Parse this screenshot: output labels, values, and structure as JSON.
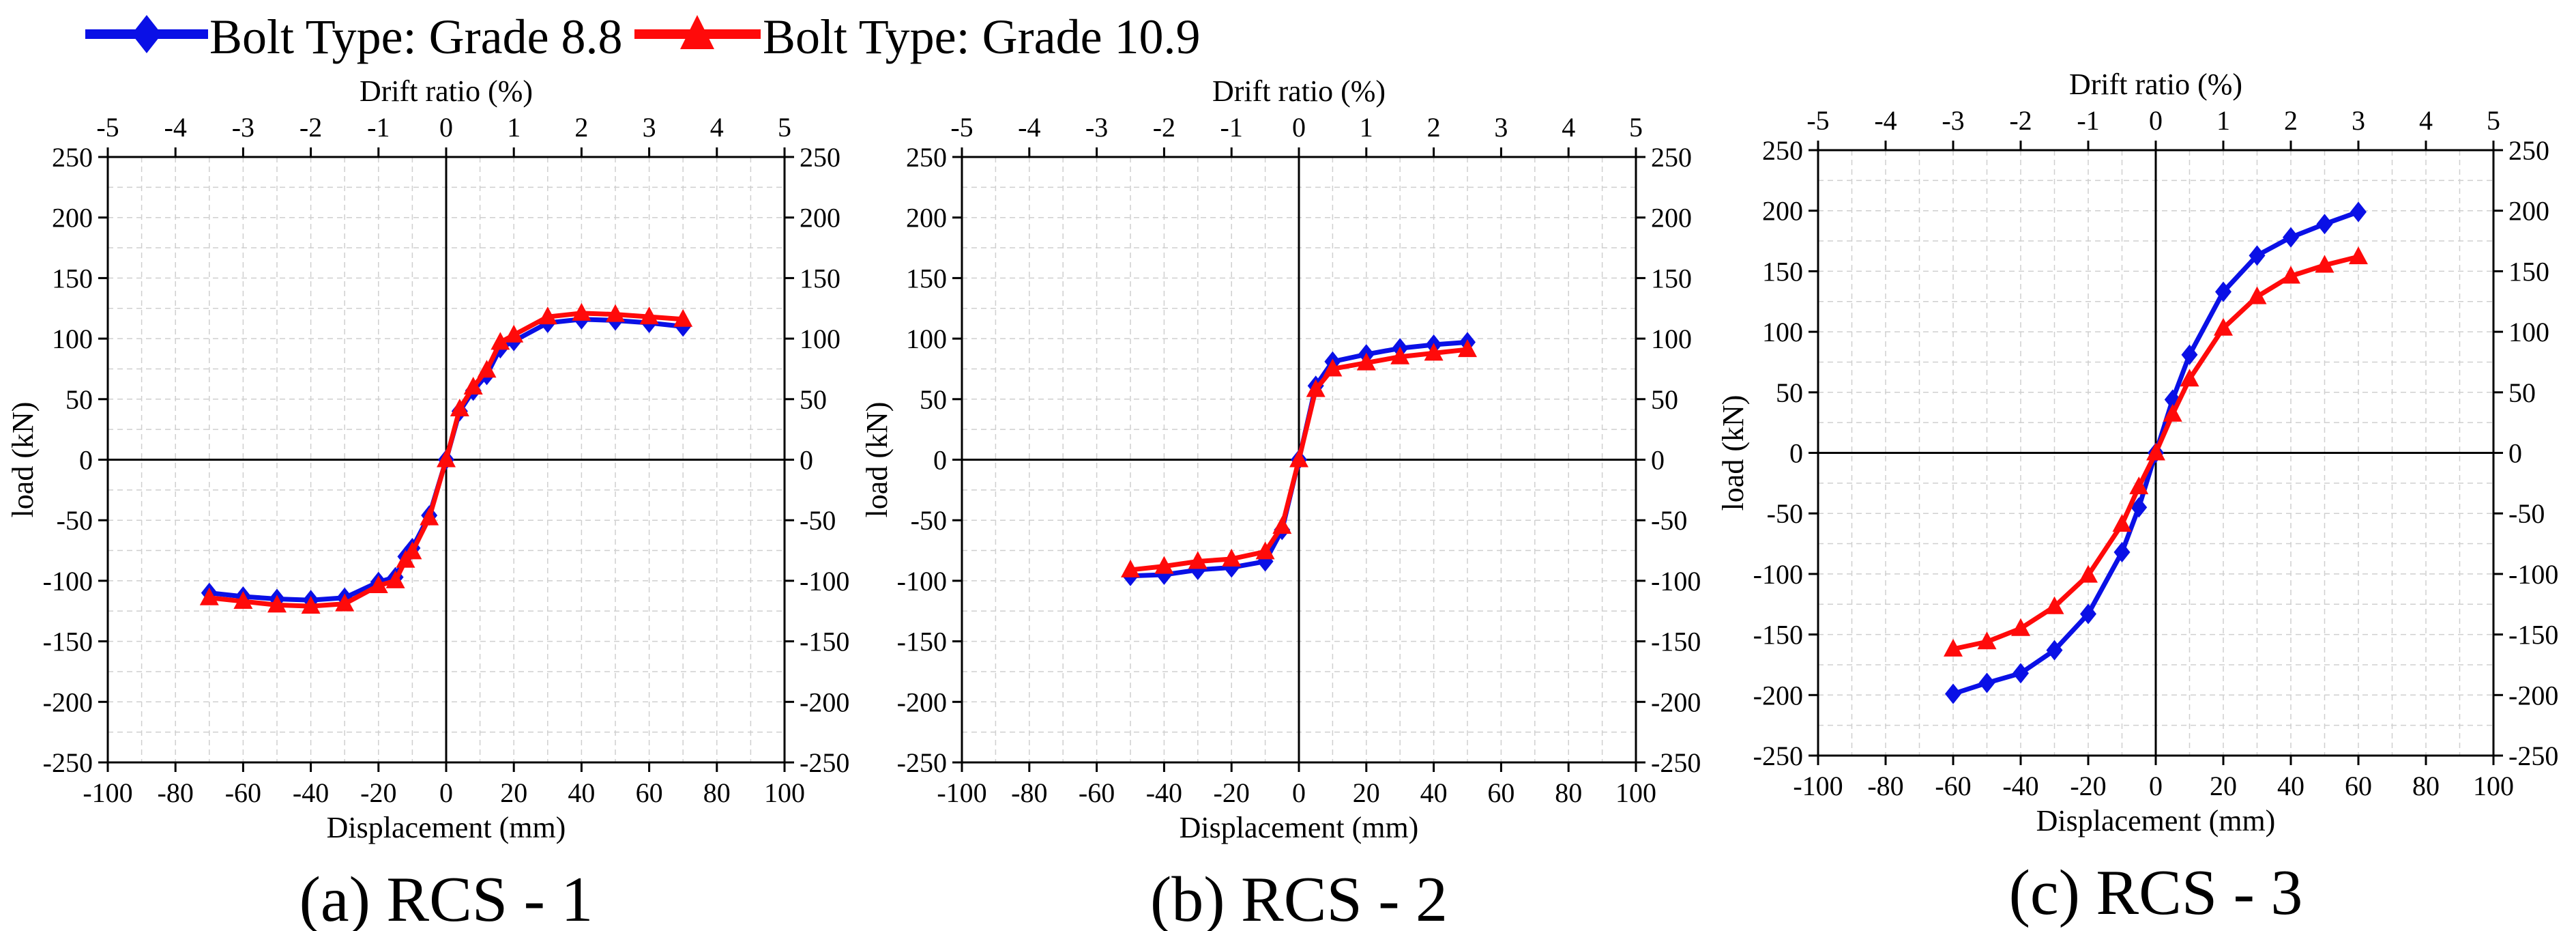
{
  "legend": {
    "items": [
      {
        "label": "Bolt Type: Grade 8.8",
        "color": "#0a10e6",
        "marker": "diamond"
      },
      {
        "label": "Bolt Type: Grade 10.9",
        "color": "#ff0a0a",
        "marker": "triangle"
      }
    ]
  },
  "chart_data": [
    {
      "type": "line",
      "title": "(a) RCS - 1",
      "xlabel": "Displacement (mm)",
      "x2label": "Drift ratio (%)",
      "ylabel": "load (kN)",
      "xlim": [
        -100,
        100
      ],
      "x2lim": [
        -5,
        5
      ],
      "ylim": [
        -250,
        250
      ],
      "xticks": [
        -100,
        -80,
        -60,
        -40,
        -20,
        0,
        20,
        40,
        60,
        80,
        100
      ],
      "x2ticks": [
        -5,
        -4,
        -3,
        -2,
        -1,
        0,
        1,
        2,
        3,
        4,
        5
      ],
      "yticks": [
        -250,
        -200,
        -150,
        -100,
        -50,
        0,
        50,
        100,
        150,
        200,
        250
      ],
      "grid": true,
      "series": [
        {
          "name": "Bolt Type: Grade 8.8",
          "color": "#0a10e6",
          "marker": "diamond",
          "x": [
            -70,
            -60,
            -50,
            -40,
            -30,
            -20,
            -15,
            -12,
            -10,
            -5,
            0,
            4,
            8,
            12,
            16,
            20,
            30,
            40,
            50,
            60,
            70
          ],
          "y": [
            -110,
            -113,
            -115,
            -116,
            -114,
            -101,
            -97,
            -80,
            -73,
            -46,
            0,
            40,
            57,
            70,
            92,
            98,
            113,
            116,
            115,
            113,
            110
          ]
        },
        {
          "name": "Bolt Type: Grade 10.9",
          "color": "#ff0a0a",
          "marker": "triangle",
          "x": [
            -70,
            -60,
            -50,
            -40,
            -30,
            -20,
            -15,
            -12,
            -10,
            -5,
            0,
            4,
            8,
            12,
            16,
            20,
            30,
            40,
            50,
            60,
            70
          ],
          "y": [
            -114,
            -117,
            -120,
            -121,
            -119,
            -104,
            -100,
            -83,
            -76,
            -48,
            0,
            42,
            60,
            74,
            97,
            103,
            118,
            121,
            120,
            118,
            116
          ]
        }
      ]
    },
    {
      "type": "line",
      "title": "(b) RCS - 2",
      "xlabel": "Displacement (mm)",
      "x2label": "Drift ratio (%)",
      "ylabel": "load (kN)",
      "xlim": [
        -100,
        100
      ],
      "x2lim": [
        -5,
        5
      ],
      "ylim": [
        -250,
        250
      ],
      "xticks": [
        -100,
        -80,
        -60,
        -40,
        -20,
        0,
        20,
        40,
        60,
        80,
        100
      ],
      "x2ticks": [
        -5,
        -4,
        -3,
        -2,
        -1,
        0,
        1,
        2,
        3,
        4,
        5
      ],
      "yticks": [
        -250,
        -200,
        -150,
        -100,
        -50,
        0,
        50,
        100,
        150,
        200,
        250
      ],
      "grid": true,
      "series": [
        {
          "name": "Bolt Type: Grade 8.8",
          "color": "#0a10e6",
          "marker": "diamond",
          "x": [
            -50,
            -40,
            -30,
            -20,
            -10,
            -5,
            0,
            5,
            10,
            20,
            30,
            40,
            50
          ],
          "y": [
            -96,
            -95,
            -91,
            -89,
            -84,
            -58,
            0,
            61,
            81,
            87,
            92,
            95,
            97
          ]
        },
        {
          "name": "Bolt Type: Grade 10.9",
          "color": "#ff0a0a",
          "marker": "triangle",
          "x": [
            -50,
            -40,
            -30,
            -20,
            -10,
            -5,
            0,
            5,
            10,
            20,
            30,
            40,
            50
          ],
          "y": [
            -91,
            -88,
            -84,
            -82,
            -76,
            -55,
            0,
            58,
            75,
            80,
            85,
            88,
            91
          ]
        }
      ]
    },
    {
      "type": "line",
      "title": "(c) RCS - 3",
      "xlabel": "Displacement (mm)",
      "x2label": "Drift ratio (%)",
      "ylabel": "load (kN)",
      "xlim": [
        -100,
        100
      ],
      "x2lim": [
        -5,
        5
      ],
      "ylim": [
        -250,
        250
      ],
      "xticks": [
        -100,
        -80,
        -60,
        -40,
        -20,
        0,
        20,
        40,
        60,
        80,
        100
      ],
      "x2ticks": [
        -5,
        -4,
        -3,
        -2,
        -1,
        0,
        1,
        2,
        3,
        4,
        5
      ],
      "yticks": [
        -250,
        -200,
        -150,
        -100,
        -50,
        0,
        50,
        100,
        150,
        200,
        250
      ],
      "grid": true,
      "series": [
        {
          "name": "Bolt Type: Grade 8.8",
          "color": "#0a10e6",
          "marker": "diamond",
          "x": [
            -60,
            -50,
            -40,
            -30,
            -20,
            -10,
            -5,
            0,
            5,
            10,
            20,
            30,
            40,
            50,
            60
          ],
          "y": [
            -199,
            -190,
            -182,
            -163,
            -133,
            -82,
            -45,
            0,
            44,
            81,
            133,
            163,
            178,
            189,
            199
          ]
        },
        {
          "name": "Bolt Type: Grade 10.9",
          "color": "#ff0a0a",
          "marker": "triangle",
          "x": [
            -60,
            -50,
            -40,
            -30,
            -20,
            -10,
            -5,
            0,
            5,
            10,
            20,
            30,
            40,
            50,
            60
          ],
          "y": [
            -162,
            -156,
            -145,
            -127,
            -101,
            -59,
            -28,
            0,
            32,
            61,
            103,
            129,
            146,
            155,
            162
          ]
        }
      ]
    }
  ]
}
